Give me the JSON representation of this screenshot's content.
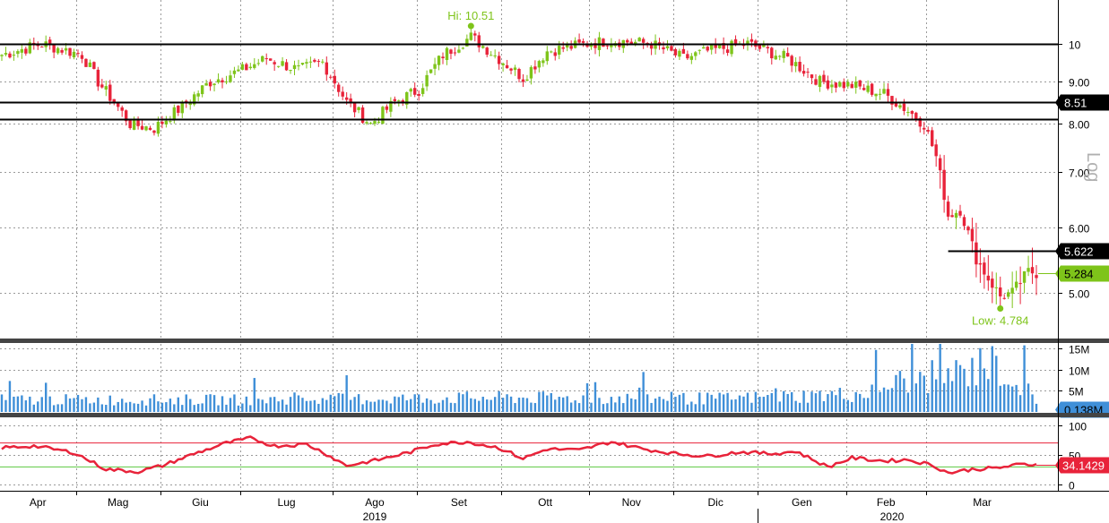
{
  "chart_data": {
    "type": "candlestick",
    "price_panel": {
      "scale": "log",
      "scale_label": "Log",
      "ylim": [
        4.4,
        11.3
      ],
      "y_ticks": [
        "5.00",
        "6.00",
        "7.00",
        "8.00",
        "9.00",
        "10"
      ],
      "y_tick_values": [
        5,
        6,
        7,
        8,
        9,
        10
      ],
      "up_color": "#7ec41a",
      "down_color": "#e8233a",
      "hi_annotation": "Hi: 10.51",
      "hi_value": 10.51,
      "hi_date_index": 117,
      "low_annotation": "Low: 4.784",
      "low_value": 4.784,
      "low_date_index": 249,
      "levels": [
        {
          "value": 10.0,
          "label": "",
          "start_index": 0
        },
        {
          "value": 8.51,
          "label": "8.51",
          "start_index": 0
        },
        {
          "value": 8.1,
          "label": "",
          "start_index": 0
        },
        {
          "value": 5.622,
          "label": "5.622",
          "start_index": 236
        }
      ],
      "last_price": 5.284,
      "last_price_label": "5.284",
      "close_anchors": [
        [
          0,
          9.7
        ],
        [
          10,
          10.0
        ],
        [
          20,
          9.7
        ],
        [
          24,
          9.0
        ],
        [
          32,
          8.0
        ],
        [
          38,
          7.9
        ],
        [
          45,
          8.4
        ],
        [
          52,
          9.0
        ],
        [
          60,
          9.3
        ],
        [
          66,
          9.6
        ],
        [
          74,
          9.3
        ],
        [
          80,
          9.5
        ],
        [
          86,
          8.5
        ],
        [
          92,
          8.0
        ],
        [
          98,
          8.5
        ],
        [
          104,
          8.8
        ],
        [
          110,
          9.7
        ],
        [
          117,
          10.2
        ],
        [
          124,
          9.6
        ],
        [
          130,
          9.1
        ],
        [
          136,
          9.8
        ],
        [
          146,
          10.0
        ],
        [
          152,
          10.1
        ],
        [
          162,
          10.0
        ],
        [
          170,
          9.6
        ],
        [
          176,
          9.8
        ],
        [
          186,
          10.0
        ],
        [
          196,
          9.6
        ],
        [
          204,
          9.0
        ],
        [
          212,
          8.9
        ],
        [
          220,
          8.7
        ],
        [
          226,
          8.3
        ],
        [
          230,
          8.0
        ],
        [
          233,
          7.3
        ],
        [
          236,
          6.2
        ],
        [
          239,
          6.3
        ],
        [
          243,
          5.5
        ],
        [
          246,
          5.2
        ],
        [
          249,
          4.95
        ],
        [
          252,
          5.0
        ],
        [
          256,
          5.3
        ],
        [
          258,
          5.284
        ]
      ]
    },
    "volume_panel": {
      "y_ticks": [
        "5M",
        "10M",
        "15M"
      ],
      "y_tick_values": [
        5,
        10,
        15
      ],
      "unit": "M",
      "ylim": [
        0,
        16
      ],
      "bar_color": "#3f8fd8",
      "last_label": "0.138M",
      "last_value": 0.138,
      "anchors": [
        [
          0,
          3.0
        ],
        [
          60,
          3.0
        ],
        [
          120,
          3.5
        ],
        [
          180,
          3.3
        ],
        [
          215,
          4.5
        ],
        [
          224,
          7.5
        ],
        [
          234,
          9.0
        ],
        [
          242,
          10.0
        ],
        [
          246,
          12.0
        ],
        [
          250,
          10.0
        ],
        [
          256,
          5.0
        ],
        [
          258,
          2.0
        ]
      ]
    },
    "rsi_panel": {
      "y_ticks": [
        "0",
        "50",
        "100"
      ],
      "y_tick_values": [
        0,
        50,
        100
      ],
      "ylim": [
        -10,
        110
      ],
      "upper_level": 70,
      "lower_level": 30,
      "line_color": "#e8233a",
      "last_label": "34.1429",
      "last_value": 34.1429,
      "anchors": [
        [
          0,
          62
        ],
        [
          8,
          65
        ],
        [
          18,
          54
        ],
        [
          22,
          40
        ],
        [
          26,
          26
        ],
        [
          34,
          22
        ],
        [
          40,
          32
        ],
        [
          48,
          52
        ],
        [
          56,
          70
        ],
        [
          62,
          78
        ],
        [
          68,
          65
        ],
        [
          76,
          68
        ],
        [
          80,
          55
        ],
        [
          86,
          32
        ],
        [
          94,
          42
        ],
        [
          102,
          55
        ],
        [
          108,
          68
        ],
        [
          116,
          72
        ],
        [
          124,
          62
        ],
        [
          130,
          44
        ],
        [
          136,
          60
        ],
        [
          144,
          58
        ],
        [
          152,
          72
        ],
        [
          160,
          60
        ],
        [
          168,
          52
        ],
        [
          176,
          48
        ],
        [
          184,
          55
        ],
        [
          192,
          52
        ],
        [
          198,
          56
        ],
        [
          206,
          30
        ],
        [
          212,
          45
        ],
        [
          220,
          40
        ],
        [
          226,
          42
        ],
        [
          232,
          33
        ],
        [
          236,
          20
        ],
        [
          242,
          26
        ],
        [
          248,
          28
        ],
        [
          254,
          34
        ],
        [
          258,
          34.1
        ]
      ]
    },
    "x_axis": {
      "months": [
        "Apr",
        "Mag",
        "Giu",
        "Lug",
        "Ago",
        "Set",
        "Ott",
        "Nov",
        "Dic",
        "Gen",
        "Feb",
        "Mar"
      ],
      "month_start_index": [
        0,
        19,
        40,
        60,
        83,
        104,
        125,
        147,
        168,
        189,
        211,
        231
      ],
      "years": [
        "2019",
        "2020"
      ],
      "year_label_index": [
        93,
        222
      ],
      "year_separator_index": 189,
      "n_days": 259
    }
  }
}
